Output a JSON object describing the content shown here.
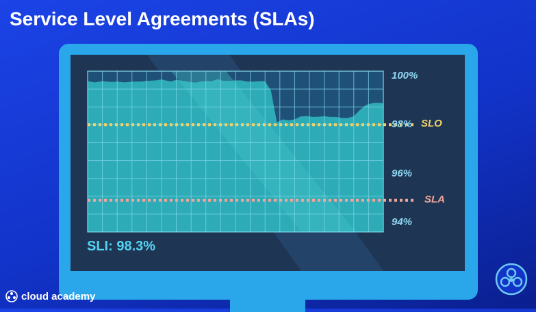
{
  "header": {
    "title": "Service Level Agreements (SLAs)"
  },
  "chart_data": {
    "type": "area",
    "title": "",
    "xlabel": "",
    "ylabel": "",
    "ylim": [
      93.6,
      100.2
    ],
    "y_ticks": [
      "100%",
      "98%",
      "96%",
      "94%"
    ],
    "y_tick_values": [
      100,
      98,
      96,
      94
    ],
    "grid": true,
    "series": [
      {
        "x": [
          0,
          0.5,
          1,
          1.6,
          2,
          2.5,
          3,
          3.6,
          4,
          4.6,
          5,
          5.6,
          6,
          6.6,
          7,
          7.3,
          7.6,
          8,
          8.4,
          8.8,
          9.2,
          9.6,
          10,
          10.4,
          10.8,
          11.2,
          11.6,
          12,
          12.4,
          12.8,
          13.2,
          13.6,
          14,
          14.4,
          14.8,
          15.2,
          15.6,
          16,
          16.4,
          16.8,
          17.2,
          17.6,
          18,
          18.4,
          18.8,
          19,
          19.4,
          19.7,
          20
        ],
        "y": [
          99.79,
          99.74,
          99.79,
          99.76,
          99.77,
          99.74,
          99.77,
          99.77,
          99.8,
          99.82,
          99.86,
          99.78,
          99.84,
          99.79,
          99.75,
          99.73,
          99.77,
          99.79,
          99.79,
          99.87,
          99.8,
          99.8,
          99.82,
          99.82,
          99.77,
          99.77,
          99.79,
          99.79,
          99.4,
          98.1,
          98.22,
          98.18,
          98.22,
          98.34,
          98.36,
          98.32,
          98.33,
          98.35,
          98.32,
          98.32,
          98.28,
          98.28,
          98.35,
          98.6,
          98.8,
          98.85,
          98.9,
          98.9,
          98.88
        ]
      }
    ],
    "threshold_lines": [
      {
        "name": "SLO",
        "value": 98.0,
        "color": "#f1d16a"
      },
      {
        "name": "SLA",
        "value": 94.9,
        "color": "#f0a69a"
      }
    ]
  },
  "sli": {
    "label": "SLI: 98.3%"
  },
  "footer": {
    "brand": "cloud academy",
    "logo_icon": "cloud-academy-logo-icon",
    "badge_icon": "cloud-academy-badge-icon"
  },
  "colors": {
    "background": "#1b43e6",
    "monitor": "#2aa6ea",
    "screen": "#1f3554",
    "area_fill": "#2fb3bc",
    "grid": "#7fd8ea"
  }
}
